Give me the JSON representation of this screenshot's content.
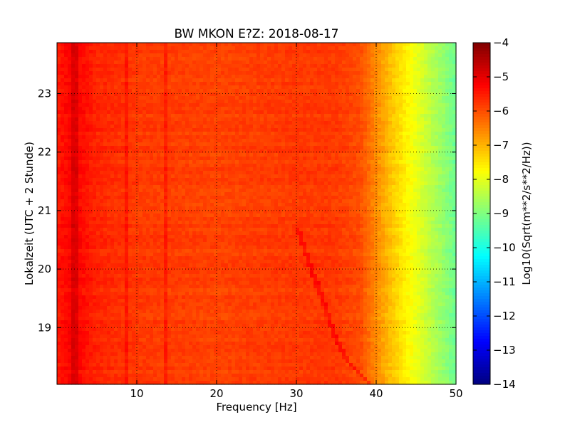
{
  "chart_data": {
    "type": "heatmap",
    "title": "BW MKON E?Z: 2018-08-17",
    "xlabel": "Frequency [Hz]",
    "ylabel": "Lokalzeit (UTC + 2 Stunde)",
    "xlim": [
      0,
      50
    ],
    "ylim": [
      23.87,
      18.03
    ],
    "x_ticks": [
      10,
      20,
      30,
      40,
      50
    ],
    "y_ticks": [
      19,
      20,
      21,
      22,
      23
    ],
    "grid": true,
    "colormap": "jet",
    "colorbar": {
      "label": "Log10(Sqrt(m**2/s**2/Hz))",
      "range": [
        -14,
        -4
      ],
      "ticks": [
        -4,
        -5,
        -6,
        -7,
        -8,
        -9,
        -10,
        -11,
        -12,
        -13,
        -14
      ]
    },
    "spectrum_profile": {
      "frequency_hz": [
        0,
        2,
        5,
        10,
        20,
        30,
        35,
        38,
        40,
        42,
        44,
        46,
        48,
        50
      ],
      "log10_amplitude": [
        -5.5,
        -5.2,
        -5.6,
        -5.8,
        -5.9,
        -5.8,
        -5.8,
        -6.0,
        -6.6,
        -7.2,
        -7.7,
        -8.2,
        -8.7,
        -9.2
      ]
    },
    "features": {
      "horizontal_bands_hour": [
        18.85,
        19.82,
        20.72,
        20.95,
        21.15,
        22.55,
        22.87,
        23.03
      ],
      "vertical_lines_hz": [
        2.1,
        2.6,
        8.8,
        13.6
      ],
      "drifting_line": {
        "time_hour": [
          18.03,
          18.5,
          19.0,
          19.5,
          20.0,
          20.5,
          20.72
        ],
        "frequency_hz": [
          39.2,
          36.0,
          34.4,
          33.2,
          31.9,
          30.6,
          30.0
        ]
      }
    }
  }
}
